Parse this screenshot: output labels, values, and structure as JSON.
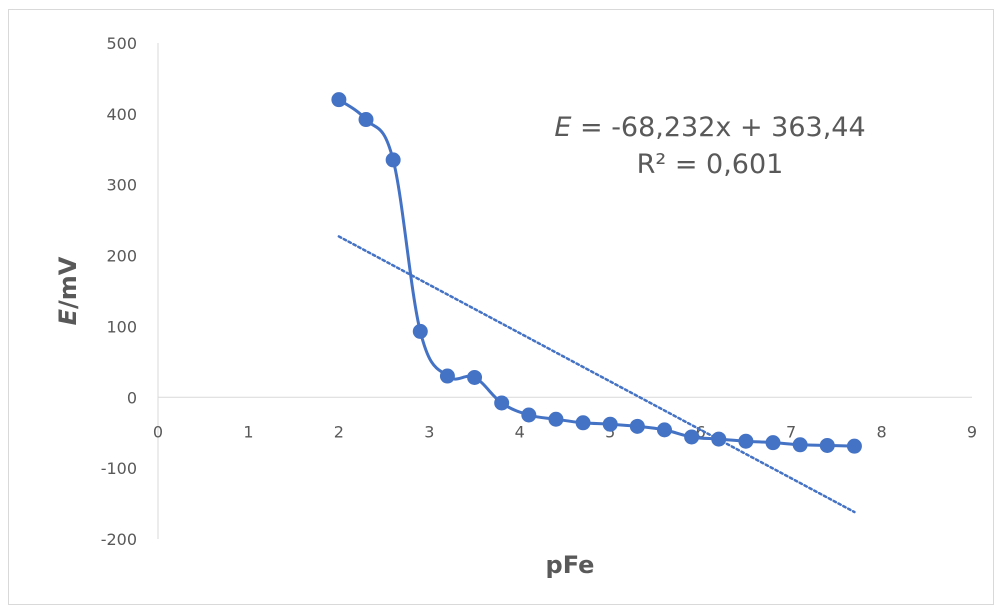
{
  "chart_data": {
    "type": "scatter",
    "xlabel": "pFe",
    "ylabel_italic": "E",
    "ylabel_rest": "/mV",
    "xlim": [
      0,
      9
    ],
    "ylim": [
      -200,
      500
    ],
    "x_ticks": [
      "0",
      "1",
      "2",
      "3",
      "4",
      "5",
      "6",
      "7",
      "8",
      "9"
    ],
    "y_ticks": [
      "500",
      "400",
      "300",
      "200",
      "100",
      "0",
      "-100",
      "-200"
    ],
    "grid": false,
    "legend": "none",
    "series": [
      {
        "x": [
          2.0,
          2.3,
          2.6,
          2.9,
          3.2,
          3.5,
          3.8,
          4.1,
          4.4,
          4.7,
          5.0,
          5.3,
          5.6,
          5.9,
          6.2,
          6.5,
          6.8,
          7.1,
          7.4,
          7.7
        ],
        "y": [
          420,
          392,
          335,
          93,
          30,
          28,
          -8,
          -25,
          -31,
          -36,
          -38,
          -41,
          -46,
          -56,
          -59,
          -62,
          -64,
          -67,
          -68,
          -69
        ],
        "color": "#4472C4"
      }
    ],
    "trendline": {
      "slope": -68.232,
      "intercept": 363.44,
      "x_range": [
        2.0,
        7.7
      ],
      "color": "#4472C4",
      "style": "dotted"
    },
    "equation": {
      "italic": "E",
      "rest": " = -68,232x + 363,44",
      "r2": "R² = 0,601"
    }
  }
}
